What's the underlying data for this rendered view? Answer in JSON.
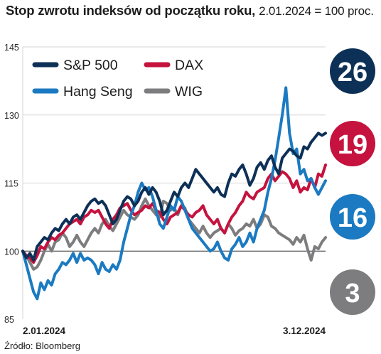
{
  "title": "Stop zwrotu indeksów od początku roku,",
  "subtitle": "2.01.2024 = 100 proc.",
  "source": "Źródło: Bloomberg",
  "chart_data": {
    "type": "line",
    "title": "Stop zwrotu indeksów od początku roku,",
    "subtitle": "2.01.2024 = 100 proc.",
    "xlabel": "",
    "ylabel": "",
    "x_tick_labels": [
      "2.01.2024",
      "3.12.2024"
    ],
    "y_ticks": [
      85,
      100,
      115,
      130,
      145
    ],
    "ylim": [
      85,
      145
    ],
    "reference_line": 100,
    "grid": true,
    "legend_position": "top-left",
    "series": [
      {
        "name": "S&P 500",
        "color": "#0d3057",
        "final_badge": "26",
        "values": [
          100,
          98.5,
          99.5,
          98,
          101,
          102,
          103,
          102.5,
          104,
          105,
          104.5,
          106,
          107,
          106,
          107.5,
          108,
          107,
          108.5,
          110,
          111,
          111.5,
          110.5,
          111,
          110,
          108,
          106,
          107,
          109,
          111,
          112,
          111.5,
          110,
          111,
          113,
          114,
          112.5,
          114,
          113,
          111,
          108,
          109,
          111,
          113,
          112,
          114,
          115,
          114,
          116,
          118,
          117,
          116,
          115,
          114,
          113,
          114,
          112.5,
          112,
          115,
          117,
          116.5,
          118,
          119,
          117,
          114.5,
          116,
          118.5,
          119.5,
          118,
          120,
          121,
          118.5,
          117,
          120.5,
          121.5,
          122.5,
          122,
          121,
          120.5,
          123,
          122.5,
          124,
          125,
          126,
          125.5,
          126
        ]
      },
      {
        "name": "DAX",
        "color": "#c5123e",
        "final_badge": "19",
        "values": [
          100,
          99,
          98.5,
          97.5,
          99,
          101,
          100.5,
          102,
          103,
          102.5,
          103.5,
          104,
          105,
          106,
          106.5,
          107,
          106,
          107.5,
          108,
          109,
          108.5,
          109,
          107.5,
          106,
          105,
          107,
          108,
          109.5,
          110,
          110.5,
          109,
          108,
          108.5,
          109,
          110,
          109.5,
          110.5,
          109,
          108.5,
          107,
          106,
          107.5,
          108,
          108.5,
          110,
          109,
          108,
          107.5,
          108.5,
          109,
          110,
          108,
          107,
          106,
          107,
          105,
          104,
          106,
          107.5,
          108.5,
          110,
          111,
          113,
          112,
          111.5,
          113,
          113.5,
          114,
          116,
          117,
          115.5,
          116.5,
          117.5,
          117,
          116,
          114,
          115.5,
          113,
          114,
          113.5,
          116,
          114,
          117,
          116.5,
          119
        ]
      },
      {
        "name": "Hang Seng",
        "color": "#1b7ac1",
        "final_badge": "16",
        "values": [
          100,
          97,
          94,
          91,
          89.5,
          93,
          91.5,
          93.5,
          92.5,
          95,
          96,
          97.5,
          97,
          98,
          99.5,
          97.5,
          99.5,
          98,
          98.5,
          98,
          97,
          95,
          97.5,
          96,
          95.5,
          97,
          96,
          98,
          102,
          105,
          108,
          110,
          113,
          115,
          113.5,
          114,
          112,
          109,
          106,
          105,
          107.5,
          110,
          109,
          112,
          111,
          109,
          107,
          105,
          104,
          103,
          102,
          101,
          100,
          100.5,
          102,
          100,
          98.5,
          98,
          100.5,
          101.5,
          103,
          101,
          102,
          104,
          102,
          105,
          107,
          109,
          113,
          116,
          120,
          125,
          130,
          136,
          126,
          121.5,
          122.5,
          117,
          118,
          115.5,
          116,
          114,
          112.5,
          114,
          115.5
        ]
      },
      {
        "name": "WIG",
        "color": "#7d7d7f",
        "final_badge": "3",
        "values": [
          100,
          99,
          97.5,
          96,
          96.5,
          98,
          100,
          101.5,
          100,
          102,
          102.5,
          104,
          103,
          101,
          102,
          103.5,
          102,
          101,
          102.5,
          104,
          105,
          104,
          106,
          107,
          105.5,
          104.5,
          106,
          107.5,
          109,
          108,
          107.5,
          107,
          108,
          110,
          111.5,
          110,
          109,
          108,
          107.5,
          111,
          110.5,
          109,
          109.5,
          108,
          110,
          109.5,
          107,
          106,
          105,
          104,
          105.5,
          104,
          103,
          104,
          104.5,
          105,
          104,
          106,
          105,
          103.5,
          104.5,
          105,
          106,
          105.5,
          107,
          105,
          106,
          108,
          107.5,
          105.5,
          105,
          104,
          103.5,
          103,
          102.5,
          101.5,
          103,
          102,
          103.5,
          100.5,
          98,
          101,
          100.5,
          102,
          103
        ]
      }
    ]
  }
}
